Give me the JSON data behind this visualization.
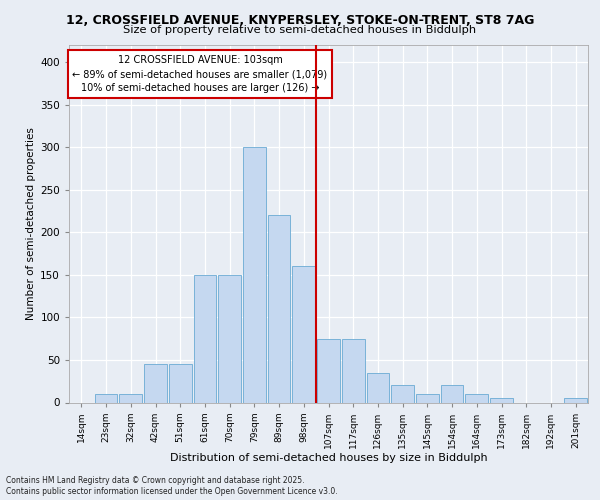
{
  "title1": "12, CROSSFIELD AVENUE, KNYPERSLEY, STOKE-ON-TRENT, ST8 7AG",
  "title2": "Size of property relative to semi-detached houses in Biddulph",
  "xlabel": "Distribution of semi-detached houses by size in Biddulph",
  "ylabel": "Number of semi-detached properties",
  "categories": [
    "14sqm",
    "23sqm",
    "32sqm",
    "42sqm",
    "51sqm",
    "61sqm",
    "70sqm",
    "79sqm",
    "89sqm",
    "98sqm",
    "107sqm",
    "117sqm",
    "126sqm",
    "135sqm",
    "145sqm",
    "154sqm",
    "164sqm",
    "173sqm",
    "182sqm",
    "192sqm",
    "201sqm"
  ],
  "values": [
    0,
    10,
    10,
    45,
    45,
    150,
    150,
    300,
    220,
    160,
    75,
    75,
    35,
    20,
    10,
    20,
    10,
    5,
    0,
    0,
    5
  ],
  "bar_color": "#c5d8f0",
  "bar_edge_color": "#6aaad4",
  "vline_color": "#cc0000",
  "annotation_title": "12 CROSSFIELD AVENUE: 103sqm",
  "annotation_line1": "← 89% of semi-detached houses are smaller (1,079)",
  "annotation_line2": "10% of semi-detached houses are larger (126) →",
  "annotation_box_color": "#ffffff",
  "annotation_box_edge": "#cc0000",
  "footer1": "Contains HM Land Registry data © Crown copyright and database right 2025.",
  "footer2": "Contains public sector information licensed under the Open Government Licence v3.0.",
  "ylim": [
    0,
    420
  ],
  "yticks": [
    0,
    50,
    100,
    150,
    200,
    250,
    300,
    350,
    400
  ],
  "background_color": "#e8edf4",
  "plot_background": "#e8edf4",
  "vline_pos": 9.5
}
